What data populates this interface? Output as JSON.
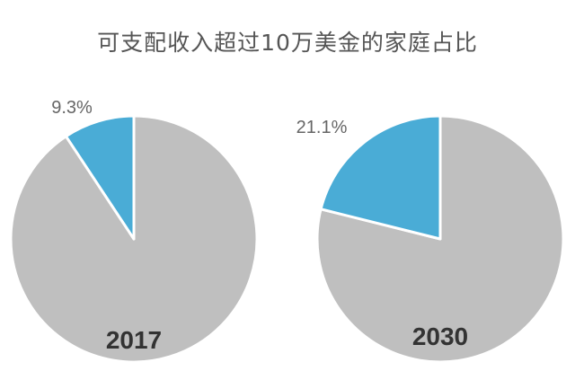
{
  "title": "可支配收入超过10万美金的家庭占比",
  "colors": {
    "highlight": "#4aacd6",
    "rest": "#bfbfbf",
    "year_text": "#333333",
    "pct_text": "#666666"
  },
  "chart_data": [
    {
      "type": "pie",
      "label": "2017",
      "slices": [
        {
          "value": 9.3,
          "label": "9.3%",
          "color": "#4aacd6"
        },
        {
          "value": 90.7,
          "label": "",
          "color": "#bfbfbf"
        }
      ]
    },
    {
      "type": "pie",
      "label": "2030",
      "slices": [
        {
          "value": 21.1,
          "label": "21.1%",
          "color": "#4aacd6"
        },
        {
          "value": 78.9,
          "label": "",
          "color": "#bfbfbf"
        }
      ]
    }
  ]
}
